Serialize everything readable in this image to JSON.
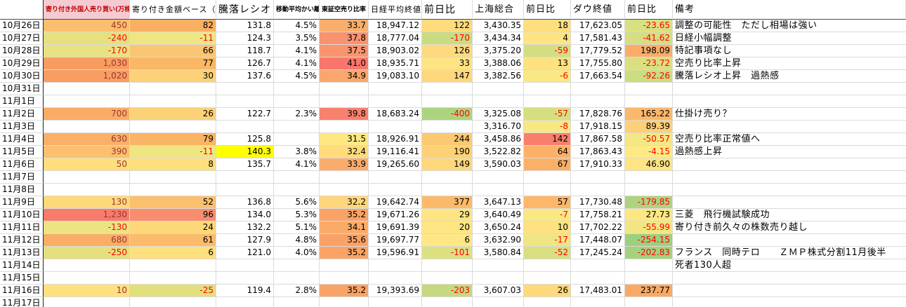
{
  "palette": {
    "negative_text": "#FF0000",
    "positive_dark_text": "#9C3530",
    "default_text": "#000000",
    "gridline": "#DADADA",
    "date_border": "#222222",
    "header_underline": "#4A4A4A",
    "header1_bg": "#F5CBD1",
    "header1_fg": "#C00000",
    "highlight_yellow": "#FFFF00"
  },
  "columns": [
    "",
    "寄り付き外国人売り買い(万株)",
    "寄り付き金額ベース（億）",
    "騰落レシオ",
    "移動平均かい離",
    "東証空売り比率",
    "日経平均終値",
    "前日比",
    "上海総合",
    "前日比",
    "ダウ終値",
    "前日比",
    "備考"
  ],
  "rows": [
    {
      "date": "10月26日",
      "cells": [
        [
          "450",
          "#FBBE6E",
          "d"
        ],
        [
          "82",
          "#FAAF63"
        ],
        [
          "131.8"
        ],
        [
          "4.5%"
        ],
        [
          "33.7",
          "#FAAE6D"
        ],
        [
          "18,947.12"
        ],
        [
          "122",
          "#FEDB7D"
        ],
        [
          "3,430.35"
        ],
        [
          "18",
          "#FEDF80"
        ],
        [
          "17,623.05"
        ],
        [
          "-23.65",
          "#D9E081",
          "r"
        ]
      ],
      "remark": "調整の可能性　ただし相場は強い"
    },
    {
      "date": "10月27日",
      "cells": [
        [
          "-240",
          "#E6E07E",
          "r"
        ],
        [
          "-11",
          "#EFE583",
          "r"
        ],
        [
          "124.3"
        ],
        [
          "3.5%"
        ],
        [
          "37.8",
          "#F9926F"
        ],
        [
          "18,777.04"
        ],
        [
          "-170",
          "#CBDB80",
          "r"
        ],
        [
          "3,434.34"
        ],
        [
          "4",
          "#FEE482"
        ],
        [
          "17,581.43"
        ],
        [
          "-41.62",
          "#D5DE80",
          "r"
        ]
      ],
      "remark": "日経小幅調整"
    },
    {
      "date": "10月28日",
      "cells": [
        [
          "-170",
          "#E9E280",
          "r"
        ],
        [
          "66",
          "#FBC671"
        ],
        [
          "118.7"
        ],
        [
          "4.1%"
        ],
        [
          "37.5",
          "#F9946F"
        ],
        [
          "18,903.02"
        ],
        [
          "126",
          "#FEDA7D"
        ],
        [
          "3,375.20"
        ],
        [
          "-59",
          "#D4DE80",
          "r"
        ],
        [
          "17,779.52"
        ],
        [
          "198.09",
          "#FBAD68"
        ]
      ],
      "remark": "特記事項なし"
    },
    {
      "date": "10月29日",
      "cells": [
        [
          "1,030",
          "#F89D62",
          "d"
        ],
        [
          "77",
          "#FAB766"
        ],
        [
          "126.7"
        ],
        [
          "4.1%"
        ],
        [
          "41.0",
          "#F8766C"
        ],
        [
          "18,935.71"
        ],
        [
          "33",
          "#FEE482"
        ],
        [
          "3,388.06"
        ],
        [
          "13",
          "#FEE181"
        ],
        [
          "17,755.80"
        ],
        [
          "-23.72",
          "#DAE081",
          "r"
        ]
      ],
      "remark": "空売り比率上昇"
    },
    {
      "date": "10月30日",
      "cells": [
        [
          "1,020",
          "#F89E63",
          "d"
        ],
        [
          "30",
          "#FCD177"
        ],
        [
          "137.6"
        ],
        [
          "4.5%"
        ],
        [
          "34.9",
          "#FAA66C"
        ],
        [
          "19,083.10"
        ],
        [
          "147",
          "#FED87C"
        ],
        [
          "3,382.56"
        ],
        [
          "-6",
          "#FAE883",
          "r"
        ],
        [
          "17,663.54"
        ],
        [
          "-92.26",
          "#CCDC80",
          "r"
        ]
      ],
      "remark": "騰落レシオ上昇　過熱感"
    },
    {
      "date": "10月31日",
      "cells": null,
      "remark": ""
    },
    {
      "date": "11月1日",
      "cells": null,
      "remark": ""
    },
    {
      "date": "11月2日",
      "cells": [
        [
          "700",
          "#FAAC66",
          "d"
        ],
        [
          "26",
          "#FCD276"
        ],
        [
          "122.7"
        ],
        [
          "2.3%"
        ],
        [
          "39.8",
          "#F8816D"
        ],
        [
          "18,683.24"
        ],
        [
          "-400",
          "#ACD47E",
          "r"
        ],
        [
          "3,325.08"
        ],
        [
          "-57",
          "#D6DF80",
          "r"
        ],
        [
          "17,828.76"
        ],
        [
          "165.22",
          "#FBB76C"
        ]
      ],
      "remark": "仕掛け売り？"
    },
    {
      "date": "11月3日",
      "cells": [
        null,
        null,
        null,
        null,
        null,
        null,
        null,
        [
          "3,316.70"
        ],
        [
          "-8",
          "#F8E883",
          "r"
        ],
        [
          "17,918.15"
        ],
        [
          "89.39",
          "#FDCF78"
        ]
      ],
      "remark": ""
    },
    {
      "date": "11月4日",
      "cells": [
        [
          "630",
          "#FAB068",
          "d"
        ],
        [
          "79",
          "#FAB465"
        ],
        [
          "125.8"
        ],
        null,
        [
          "31.5",
          "#FFE883"
        ],
        [
          "18,926.91"
        ],
        [
          "244",
          "#FCC973"
        ],
        [
          "3,458.86"
        ],
        [
          "142",
          "#F87F6D"
        ],
        [
          "17,867.58"
        ],
        [
          "-50.57",
          "#F3E883",
          "r"
        ]
      ],
      "remark": "空売り比率正常値へ"
    },
    {
      "date": "11月5日",
      "cells": [
        [
          "390",
          "#FBC070",
          "d"
        ],
        [
          "-11",
          "#EFE583",
          "r"
        ],
        [
          "140.3",
          "#FFFF00"
        ],
        [
          "3.8%"
        ],
        [
          "32.4",
          "#FEDC7D"
        ],
        [
          "19,116.41"
        ],
        [
          "190",
          "#FDD176"
        ],
        [
          "3,522.82"
        ],
        [
          "64",
          "#FBB168"
        ],
        [
          "17,863.43"
        ],
        [
          "-4.15",
          "#FEEA84",
          "r"
        ]
      ],
      "remark": "過熱感上昇"
    },
    {
      "date": "11月6日",
      "cells": [
        [
          "50",
          "#FEDE7D",
          "d"
        ],
        [
          "8",
          "#FEDF7D"
        ],
        [
          "135.7"
        ],
        [
          "4.1%"
        ],
        [
          "33.9",
          "#FAAC6C"
        ],
        [
          "19,265.60"
        ],
        [
          "149",
          "#FED87C"
        ],
        [
          "3,590.03"
        ],
        [
          "67",
          "#FBB067"
        ],
        [
          "17,910.33"
        ],
        [
          "46.90",
          "#FEE482"
        ]
      ],
      "remark": ""
    },
    {
      "date": "11月7日",
      "cells": null,
      "remark": ""
    },
    {
      "date": "11月8日",
      "cells": null,
      "remark": ""
    },
    {
      "date": "11月9日",
      "cells": [
        [
          "130",
          "#FED97B",
          "d"
        ],
        [
          "52",
          "#FBC06D"
        ],
        [
          "136.8"
        ],
        [
          "5.6%"
        ],
        [
          "32.2",
          "#FED67B"
        ],
        [
          "19,642.74"
        ],
        [
          "377",
          "#FBBA6A"
        ],
        [
          "3,647.13"
        ],
        [
          "57",
          "#FCB76B"
        ],
        [
          "17,730.48"
        ],
        [
          "-179.85",
          "#AED37E",
          "r"
        ]
      ],
      "remark": ""
    },
    {
      "date": "11月10日",
      "cells": [
        [
          "1,230",
          "#F87C6C",
          "d"
        ],
        [
          "96",
          "#F88E6E"
        ],
        [
          "134.0"
        ],
        [
          "5.3%"
        ],
        [
          "35.2",
          "#FAA366"
        ],
        [
          "19,671.26"
        ],
        [
          "29",
          "#FEE583"
        ],
        [
          "3,640.49"
        ],
        [
          "-7",
          "#F9E883",
          "r"
        ],
        [
          "17,758.21"
        ],
        [
          "27.73",
          "#FDE782"
        ]
      ],
      "remark": "三菱　飛行機試験成功"
    },
    {
      "date": "11月11日",
      "cells": [
        [
          "-130",
          "#ECE482",
          "r"
        ],
        [
          "24",
          "#FDD879"
        ],
        [
          "132.2"
        ],
        [
          "5.1%"
        ],
        [
          "34.1",
          "#FAAB69"
        ],
        [
          "19,691.39"
        ],
        [
          "20",
          "#FEE583"
        ],
        [
          "3,650.24"
        ],
        [
          "10",
          "#FEE281"
        ],
        [
          "17,702.22"
        ],
        [
          "-55.99",
          "#F0E783",
          "r"
        ]
      ],
      "remark": "寄り付き前久々の株数売り越し"
    },
    {
      "date": "11月12日",
      "cells": [
        [
          "680",
          "#FAAD67",
          "d"
        ],
        [
          "61",
          "#FBBB6A"
        ],
        [
          "127.9"
        ],
        [
          "4.8%"
        ],
        [
          "35.6",
          "#FAA166"
        ],
        [
          "19,697.77"
        ],
        [
          "6",
          "#FFE884"
        ],
        [
          "3,632.90"
        ],
        [
          "-17",
          "#EFE682",
          "r"
        ],
        [
          "17,448.07"
        ],
        [
          "-254.15",
          "#9DD07D",
          "r"
        ]
      ],
      "remark": ""
    },
    {
      "date": "11月13日",
      "cells": [
        [
          "-250",
          "#E5E07E",
          "r"
        ],
        [
          "6",
          "#FEE07E"
        ],
        [
          "121.0"
        ],
        [
          "4.0%"
        ],
        [
          "35.2",
          "#FAA366"
        ],
        [
          "19,596.91"
        ],
        [
          "-101",
          "#DCE081",
          "r"
        ],
        [
          "3,580.84"
        ],
        [
          "-52",
          "#D9DF80",
          "r"
        ],
        [
          "17,245.24"
        ],
        [
          "-202.83",
          "#A5D17E",
          "r"
        ]
      ],
      "remark": "フランス　同時テロ　　ＺＭＰ株式分割11月後半"
    },
    {
      "date": "11月14日",
      "cells": null,
      "remark": "死者130人超"
    },
    {
      "date": "11月15日",
      "cells": null,
      "remark": ""
    },
    {
      "date": "11月16日",
      "cells": [
        [
          "10",
          "#FEE07E",
          "d"
        ],
        [
          "-25",
          "#E2DF7D",
          "r"
        ],
        [
          "119.4"
        ],
        [
          "2.8%"
        ],
        [
          "35.2",
          "#FAA366"
        ],
        [
          "19,393.69"
        ],
        [
          "-203",
          "#C6D980",
          "r"
        ],
        [
          "3,607.03"
        ],
        [
          "26",
          "#FDD97C"
        ],
        [
          "17,483.01"
        ],
        [
          "237.77",
          "#FAA964"
        ]
      ],
      "remark": ""
    },
    {
      "date": "11月17日",
      "cells": null,
      "remark": ""
    }
  ]
}
